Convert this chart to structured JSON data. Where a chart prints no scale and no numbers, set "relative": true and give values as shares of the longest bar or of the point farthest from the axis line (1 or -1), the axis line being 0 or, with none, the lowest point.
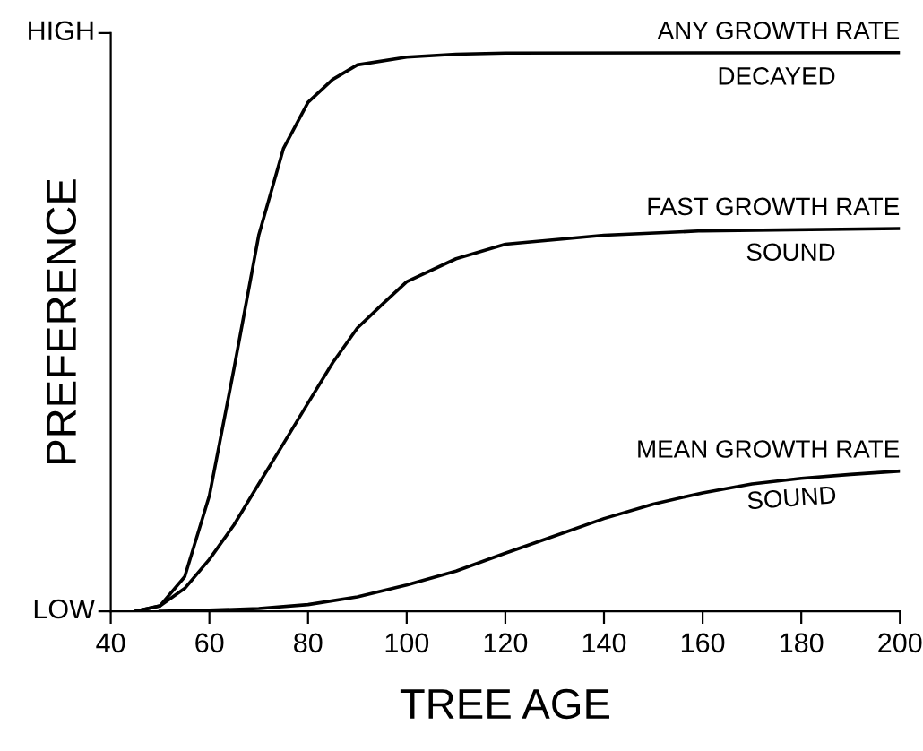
{
  "chart_data": {
    "type": "line",
    "xlabel": "TREE AGE",
    "ylabel": "PREFERENCE",
    "xlim": [
      40,
      200
    ],
    "xticks": [
      40,
      60,
      80,
      100,
      120,
      140,
      160,
      180,
      200
    ],
    "relative": true,
    "annotations": [
      "HIGH",
      "LOW"
    ],
    "grid": false,
    "legend": false,
    "marker": "none",
    "line_style": "solid",
    "series": [
      {
        "name": "ANY GROWTH RATE\nDECAYED",
        "color": "#000000",
        "x": [
          45,
          50,
          55,
          60,
          65,
          70,
          75,
          80,
          85,
          90,
          100,
          110,
          120,
          200
        ],
        "values": [
          0,
          0.01,
          0.062,
          0.207,
          0.435,
          0.673,
          0.828,
          0.911,
          0.952,
          0.978,
          0.992,
          0.997,
          0.999,
          1
        ]
      },
      {
        "name": "FAST GROWTH RATE\nSOUND",
        "color": "#000000",
        "x": [
          45,
          50,
          55,
          60,
          65,
          70,
          75,
          80,
          85,
          90,
          95,
          100,
          110,
          120,
          140,
          160,
          200
        ],
        "values": [
          0,
          0.01,
          0.041,
          0.093,
          0.155,
          0.228,
          0.3,
          0.373,
          0.445,
          0.507,
          0.549,
          0.59,
          0.631,
          0.657,
          0.673,
          0.681,
          0.685
        ]
      },
      {
        "name": "MEAN GROWTH RATE\nSOUND",
        "color": "#000000",
        "x": [
          50,
          60,
          70,
          80,
          90,
          100,
          110,
          120,
          130,
          140,
          150,
          160,
          170,
          180,
          190,
          200
        ],
        "values": [
          0,
          0.002,
          0.005,
          0.012,
          0.026,
          0.047,
          0.072,
          0.104,
          0.135,
          0.166,
          0.192,
          0.212,
          0.228,
          0.238,
          0.245,
          0.251
        ]
      }
    ]
  }
}
